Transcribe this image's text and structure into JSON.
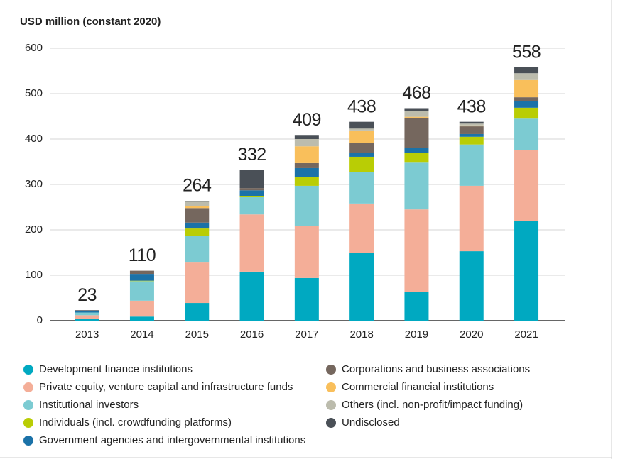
{
  "chart_data": {
    "type": "stacked_bar",
    "y_axis_label": "USD million (constant 2020)",
    "categories": [
      "2013",
      "2014",
      "2015",
      "2016",
      "2017",
      "2018",
      "2019",
      "2020",
      "2021"
    ],
    "series": [
      {
        "name": "Development finance institutions",
        "color": "#00a9c1",
        "values": [
          4,
          9,
          39,
          108,
          94,
          150,
          64,
          153,
          220
        ]
      },
      {
        "name": "Private equity, venture capital and infrastructure funds",
        "color": "#f4ae98",
        "values": [
          8,
          35,
          89,
          126,
          115,
          108,
          181,
          144,
          155
        ]
      },
      {
        "name": "Institutional investors",
        "color": "#7ccbd2",
        "values": [
          6,
          43,
          58,
          39,
          88,
          69,
          103,
          91,
          70
        ]
      },
      {
        "name": "Individuals (incl. crowdfunding platforms)",
        "color": "#b9cd05",
        "values": [
          0,
          1,
          17,
          2,
          19,
          34,
          22,
          17,
          24
        ]
      },
      {
        "name": "Government agencies and intergovernmental institutions",
        "color": "#1b72a8",
        "values": [
          3,
          15,
          13,
          12,
          20,
          9,
          10,
          6,
          14
        ]
      },
      {
        "name": "Corporations and business associations",
        "color": "#75675e",
        "values": [
          0,
          7,
          32,
          5,
          11,
          22,
          67,
          17,
          9
        ]
      },
      {
        "name": "Commercial financial institutions",
        "color": "#f9bf5b",
        "values": [
          0,
          0,
          5,
          0,
          37,
          27,
          2,
          2,
          38
        ]
      },
      {
        "name": "Others (incl. non-profit/impact funding)",
        "color": "#bcbcad",
        "values": [
          0,
          0,
          9,
          0,
          16,
          4,
          12,
          4,
          15
        ]
      },
      {
        "name": "Undisclosed",
        "color": "#4a5057",
        "values": [
          2,
          0,
          2,
          40,
          9,
          15,
          7,
          4,
          13
        ]
      }
    ],
    "totals": [
      23,
      110,
      264,
      332,
      409,
      438,
      468,
      438,
      558
    ],
    "ylim": [
      0,
      600
    ],
    "yticks": [
      0,
      100,
      200,
      300,
      400,
      500,
      600
    ],
    "grid": true
  }
}
